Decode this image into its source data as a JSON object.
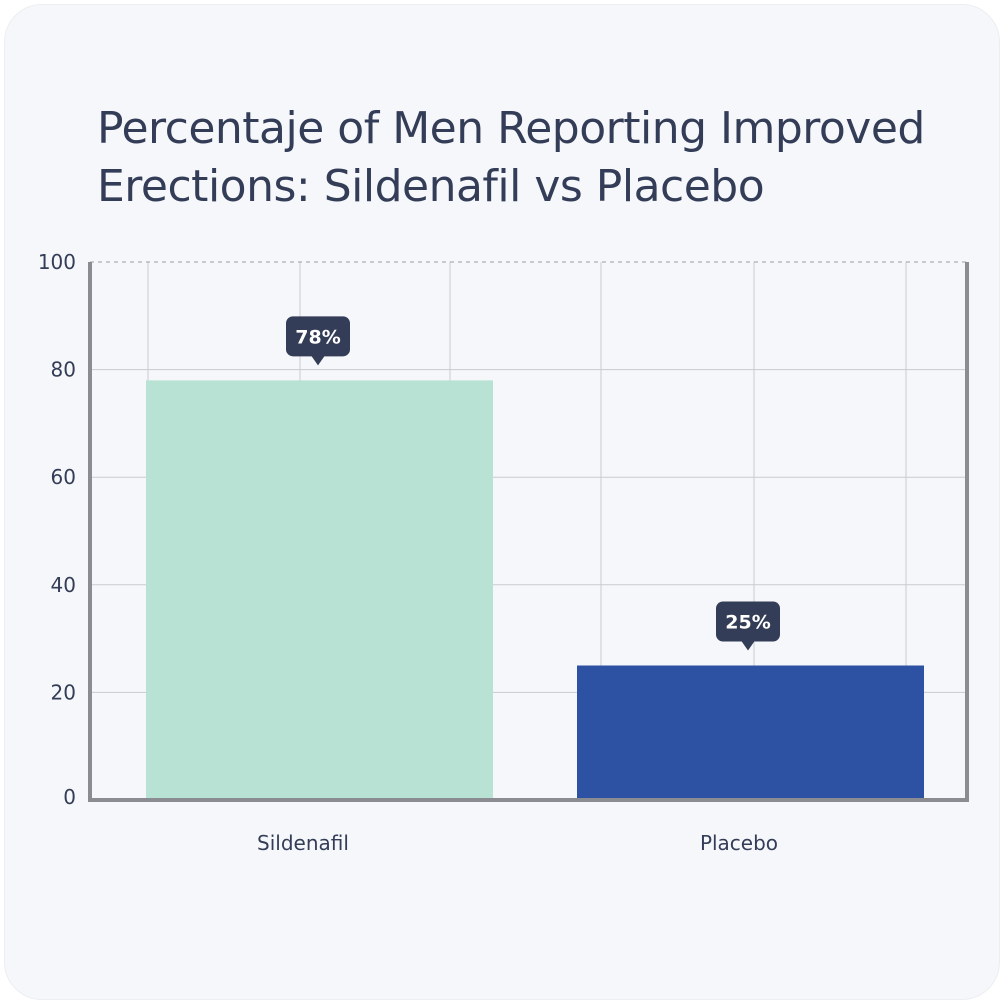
{
  "chart_data": {
    "type": "bar",
    "title": "Percentaje of Men Reporting Improved Erections: Sildenafil vs Placebo",
    "categories": [
      "Sildenafil",
      "Placebo"
    ],
    "values": [
      78,
      25
    ],
    "value_labels": [
      "78%",
      "25%"
    ],
    "yticks": [
      0,
      20,
      40,
      60,
      80,
      100
    ],
    "ylim": [
      0,
      100
    ],
    "grid": true,
    "colors": [
      "#b8e2d3",
      "#2d52a3"
    ],
    "label_color": "#343d57"
  }
}
